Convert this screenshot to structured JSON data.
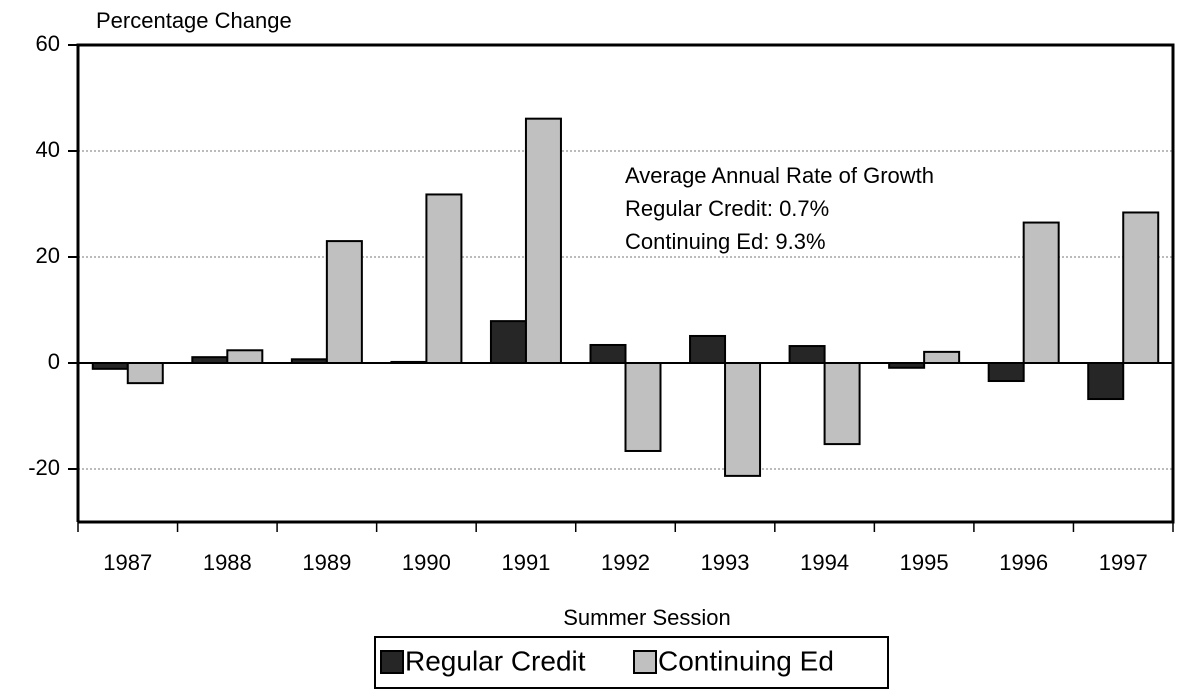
{
  "chart_data": {
    "type": "bar",
    "y_axis_label": "Percentage Change",
    "x_axis_label": "Summer Session",
    "categories": [
      "1987",
      "1988",
      "1989",
      "1990",
      "1991",
      "1992",
      "1993",
      "1994",
      "1995",
      "1996",
      "1997"
    ],
    "series": [
      {
        "name": "Regular Credit",
        "color": "#262626",
        "values": [
          -1.1,
          1.1,
          0.7,
          0.2,
          7.9,
          3.4,
          5.1,
          3.2,
          -0.9,
          -3.4,
          -6.8
        ]
      },
      {
        "name": "Continuing Ed",
        "color": "#c0c0c0",
        "values": [
          -3.8,
          2.4,
          23.0,
          31.8,
          46.1,
          -16.6,
          -21.3,
          -15.3,
          2.1,
          26.5,
          28.4
        ]
      }
    ],
    "annotations": [
      "Average Annual Rate of Growth",
      "Regular Credit:  0.7%",
      "Continuing Ed:  9.3%"
    ],
    "ylim": [
      -30,
      60
    ],
    "yticks": [
      -20,
      0,
      20,
      40,
      60
    ],
    "grid": true,
    "legend": "bottom"
  }
}
